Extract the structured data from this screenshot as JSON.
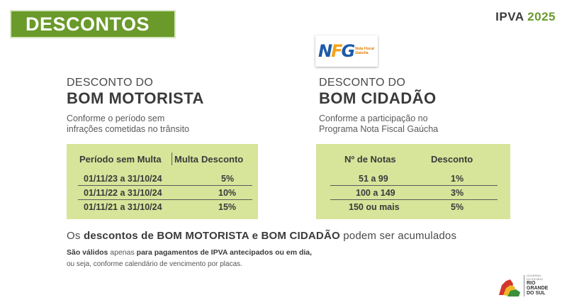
{
  "header": {
    "banner_title": "DESCONTOS",
    "year_prefix": "IPVA",
    "year": "2025"
  },
  "nfg_logo": {
    "mark_n": "N",
    "mark_f": "F",
    "mark_g": "G",
    "caption_line1": "Nota Fiscal",
    "caption_line2": "Gaúcha"
  },
  "bom_motorista": {
    "pre": "DESCONTO DO",
    "title": "BOM MOTORISTA",
    "desc_line1": "Conforme o período sem",
    "desc_line2": "infrações cometidas no trânsito",
    "table": {
      "col1": "Período sem Multa",
      "col2": "Desconto",
      "rows": [
        {
          "period": "01/11/23 a 31/10/24",
          "discount": "5%"
        },
        {
          "period": "01/11/22 a 31/10/24",
          "discount": "10%"
        },
        {
          "period": "01/11/21 a 31/10/24",
          "discount": "15%"
        }
      ]
    }
  },
  "bom_cidadao": {
    "pre": "DESCONTO DO",
    "title": "BOM CIDADÃO",
    "desc_line1": "Conforme a participação no",
    "desc_line2": "Programa Nota Fiscal Gaúcha",
    "table": {
      "col1": "Nº de Notas",
      "col2": "Desconto",
      "rows": [
        {
          "notes": "51 a 99",
          "discount": "1%"
        },
        {
          "notes": "100 a 149",
          "discount": "3%"
        },
        {
          "notes": "150 ou mais",
          "discount": "5%"
        }
      ]
    }
  },
  "footer": {
    "note_pre": "Os",
    "note_b1": "descontos de BOM MOTORISTA e BOM CIDADÃO",
    "note_post": "podem ser acumulados",
    "fine_bold1": "São válidos",
    "fine_light": "apenas",
    "fine_bold2": "para pagamentos de IPVA antecipados ou em dia",
    "fine_line2": "ou seja, conforme calendário de vencimento por placas.",
    "gov_line1": "GOVERNO",
    "gov_line2": "DO ESTADO",
    "gov_rio": "RIO",
    "gov_grande": "GRANDE",
    "gov_dosul": "DO SUL"
  },
  "colors": {
    "brand_green": "#6a9a2a",
    "table_green": "#d6e59a"
  }
}
